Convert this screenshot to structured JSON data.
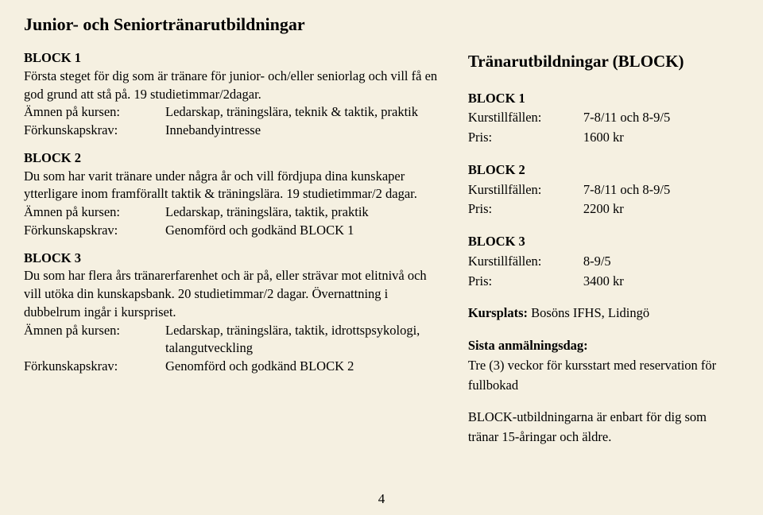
{
  "colors": {
    "background": "#f5f0e1",
    "text": "#000000"
  },
  "main_title": "Junior- och Seniortränarutbildningar",
  "left": {
    "block1": {
      "heading": "BLOCK 1",
      "intro": "Första steget för dig som är tränare för junior- och/eller seniorlag och vill få en god grund att stå på. 19 studietimmar/2dagar.",
      "rows": [
        {
          "k": "Ämnen på kursen:",
          "v": "Ledarskap, träningslära, teknik & taktik, praktik"
        },
        {
          "k": "Förkunskapskrav:",
          "v": "Innebandyintresse"
        }
      ]
    },
    "block2": {
      "heading": "BLOCK 2",
      "intro": "Du som har varit tränare under några år och vill fördjupa dina kunskaper ytterligare inom framförallt taktik & träningslära. 19 studietimmar/2 dagar.",
      "rows": [
        {
          "k": "Ämnen på kursen:",
          "v": "Ledarskap, träningslära, taktik, praktik"
        },
        {
          "k": "Förkunskapskrav:",
          "v": "Genomförd och godkänd BLOCK 1"
        }
      ]
    },
    "block3": {
      "heading": "BLOCK 3",
      "intro": "Du som har flera års tränarerfarenhet och är på, eller strävar mot elitnivå och vill utöka din kunskapsbank. 20 studietimmar/2 dagar. Övernattning i dubbelrum ingår i kurspriset.",
      "rows": [
        {
          "k": "Ämnen på kursen:",
          "v": "Ledarskap, träningslära, taktik, idrottspsykologi, talangutveckling"
        },
        {
          "k": "Förkunskapskrav:",
          "v": "Genomförd och godkänd BLOCK 2"
        }
      ]
    }
  },
  "right": {
    "title": "Tränarutbildningar (BLOCK)",
    "blocks": [
      {
        "heading": "BLOCK 1",
        "k1": "Kurstillfällen:",
        "v1": "7-8/11 och 8-9/5",
        "k2": "Pris:",
        "v2": "1600 kr"
      },
      {
        "heading": "BLOCK 2",
        "k1": "Kurstillfällen:",
        "v1": "7-8/11 och 8-9/5",
        "k2": "Pris:",
        "v2": "2200 kr"
      },
      {
        "heading": "BLOCK 3",
        "k1": "Kurstillfällen:",
        "v1": "8-9/5",
        "k2": "Pris:",
        "v2": "3400 kr"
      }
    ],
    "kursplats_label": "Kursplats:",
    "kursplats_value": " Bosöns IFHS, Lidingö",
    "sista_heading": "Sista anmälningsdag:",
    "sista_text": "Tre (3) veckor för kursstart med reservation för fullbokad",
    "footer": "BLOCK-utbildningarna är enbart för dig som tränar 15-åringar och äldre."
  },
  "pagenum": "4"
}
